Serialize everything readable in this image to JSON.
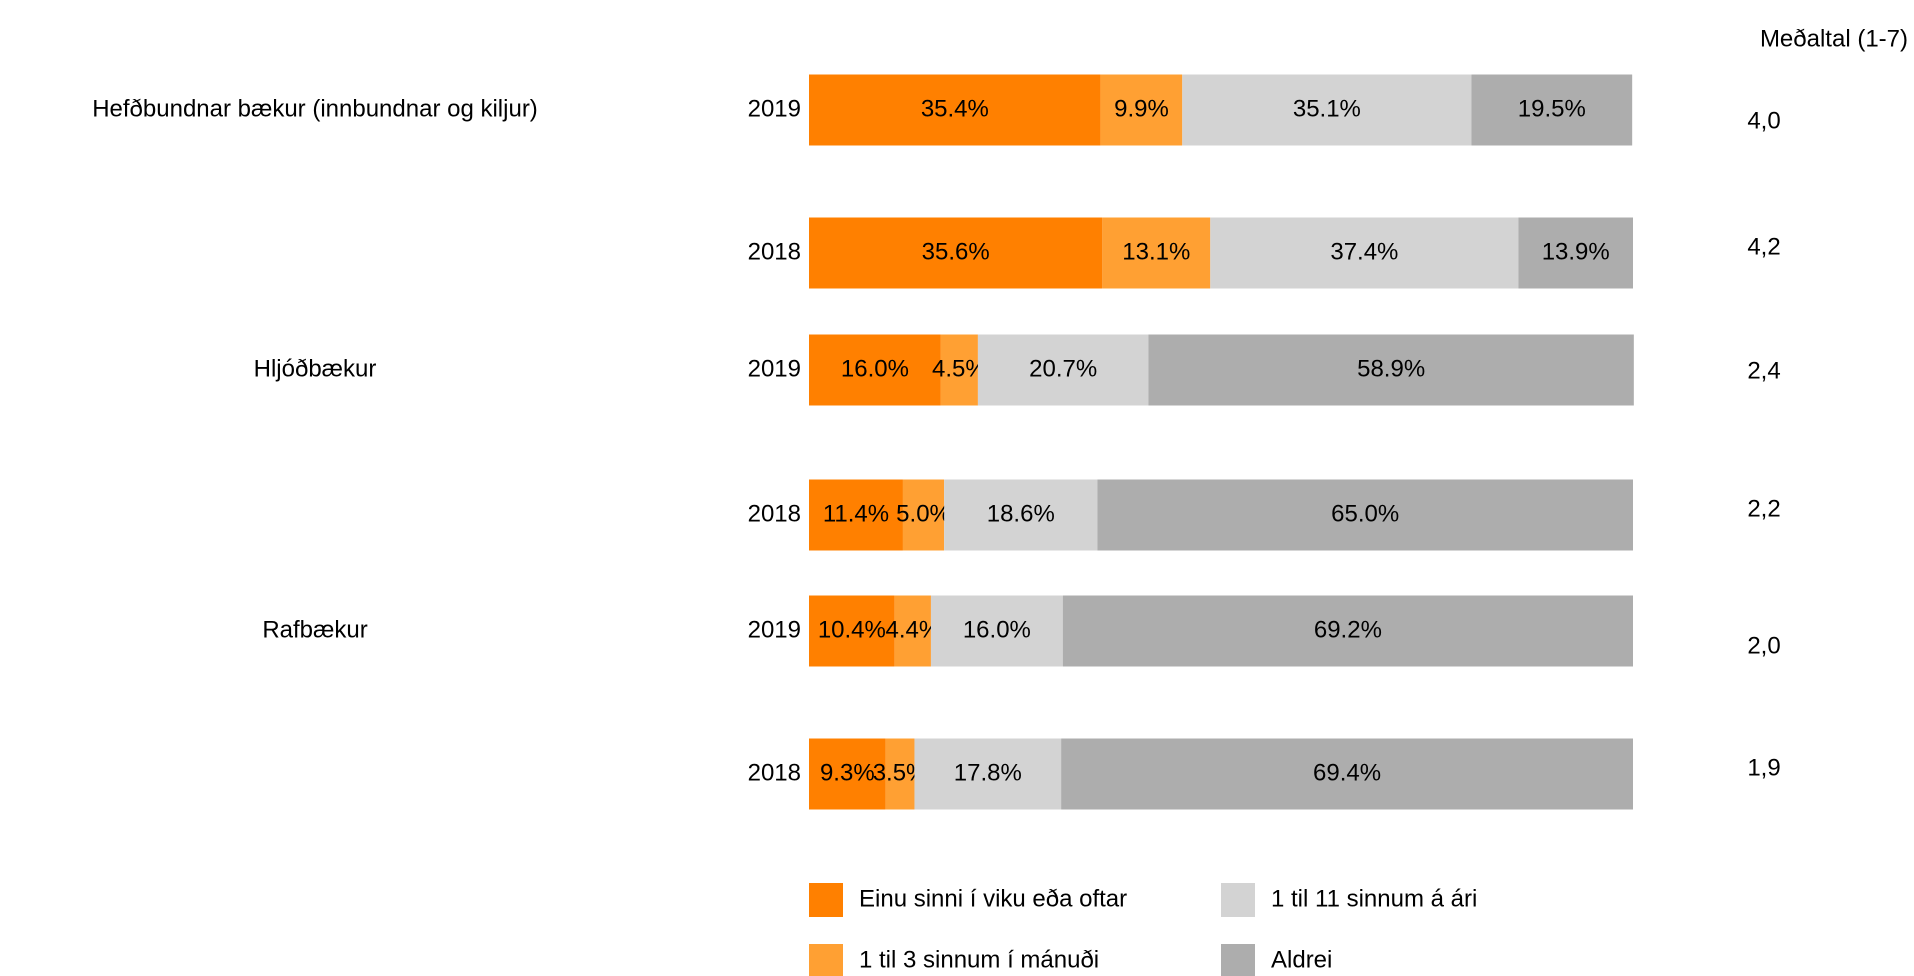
{
  "chart_data": {
    "type": "bar",
    "orientation": "horizontal",
    "stacked": true,
    "categories": [
      "2019",
      "2018",
      "2019",
      "2018",
      "2019",
      "2018"
    ],
    "group_labels": [
      "Hefðbundnar bækur (innbundnar og kiljur)",
      "Hljóðbækur",
      "Rafbækur"
    ],
    "xlim": [
      0,
      100
    ],
    "series": [
      {
        "name": "Einu sinni í viku eða oftar",
        "color": "#ff8000",
        "values": [
          35.4,
          35.6,
          16.0,
          11.4,
          10.4,
          9.3
        ],
        "value_labels": [
          "35.4%",
          "35.6%",
          "16.0%",
          "11.4%",
          "10.4%",
          "9.3%"
        ]
      },
      {
        "name": "1 til 3 sinnum í mánuði",
        "color": "#ffa033",
        "values": [
          9.9,
          13.1,
          4.5,
          5.0,
          4.4,
          3.5
        ],
        "value_labels": [
          "9.9%",
          "13.1%",
          "4.5%",
          "5.0%",
          "4.4%",
          "3.5%"
        ]
      },
      {
        "name": "1 til 11 sinnum á ári",
        "color": "#d3d3d3",
        "values": [
          35.1,
          37.4,
          20.7,
          18.6,
          16.0,
          17.8
        ],
        "value_labels": [
          "35.1%",
          "37.4%",
          "20.7%",
          "18.6%",
          "16.0%",
          "17.8%"
        ]
      },
      {
        "name": "Aldrei",
        "color": "#adadad",
        "values": [
          19.5,
          13.9,
          58.9,
          65.0,
          69.2,
          69.4
        ],
        "value_labels": [
          "19.5%",
          "13.9%",
          "58.9%",
          "65.0%",
          "69.2%",
          "69.4%"
        ]
      }
    ],
    "averages": {
      "title": "Meðaltal (1-7)",
      "values": [
        4.0,
        4.2,
        2.4,
        2.2,
        2.0,
        1.9
      ],
      "value_labels": [
        "4,0",
        "4,2",
        "2,4",
        "2,2",
        "2,0",
        "1,9"
      ]
    }
  }
}
